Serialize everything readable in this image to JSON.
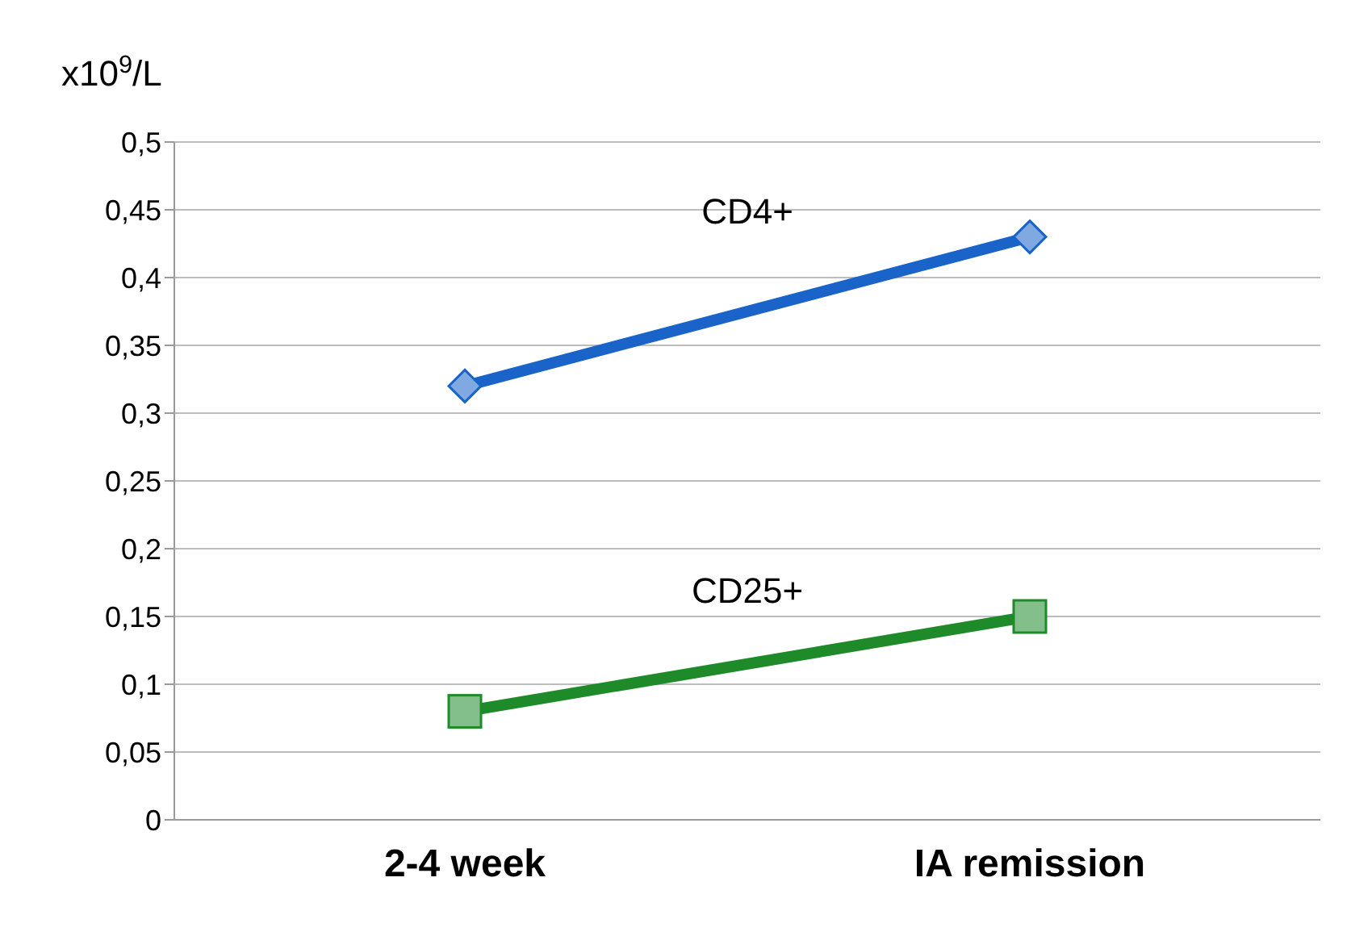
{
  "chart_data": {
    "type": "line",
    "ylabel": "x10$^{9}$/L",
    "categories": [
      "2-4 week",
      "IA remission"
    ],
    "series": [
      {
        "name": "CD4+",
        "color": "#1a63c8",
        "marker": "diamond",
        "values": [
          0.32,
          0.43
        ]
      },
      {
        "name": "CD25+",
        "color": "#1e8a2a",
        "marker": "square",
        "values": [
          0.08,
          0.15
        ]
      }
    ],
    "ylim": [
      0,
      0.5
    ],
    "yticks": [
      0,
      {
        "value": 0.05,
        "label": "0,05"
      },
      {
        "value": 0.1,
        "label": "0,1"
      },
      {
        "value": 0.15,
        "label": "0,15"
      },
      {
        "value": 0.2,
        "label": "0,2"
      },
      {
        "value": 0.25,
        "label": "0,25"
      },
      {
        "value": 0.3,
        "label": "0,3"
      },
      {
        "value": 0.35,
        "label": "0,35"
      },
      {
        "value": 0.4,
        "label": "0,4"
      },
      {
        "value": 0.45,
        "label": "0,45"
      },
      {
        "value": 0.5,
        "label": "0,5"
      }
    ],
    "grid": "y",
    "legend": false,
    "line_style": "solid"
  }
}
